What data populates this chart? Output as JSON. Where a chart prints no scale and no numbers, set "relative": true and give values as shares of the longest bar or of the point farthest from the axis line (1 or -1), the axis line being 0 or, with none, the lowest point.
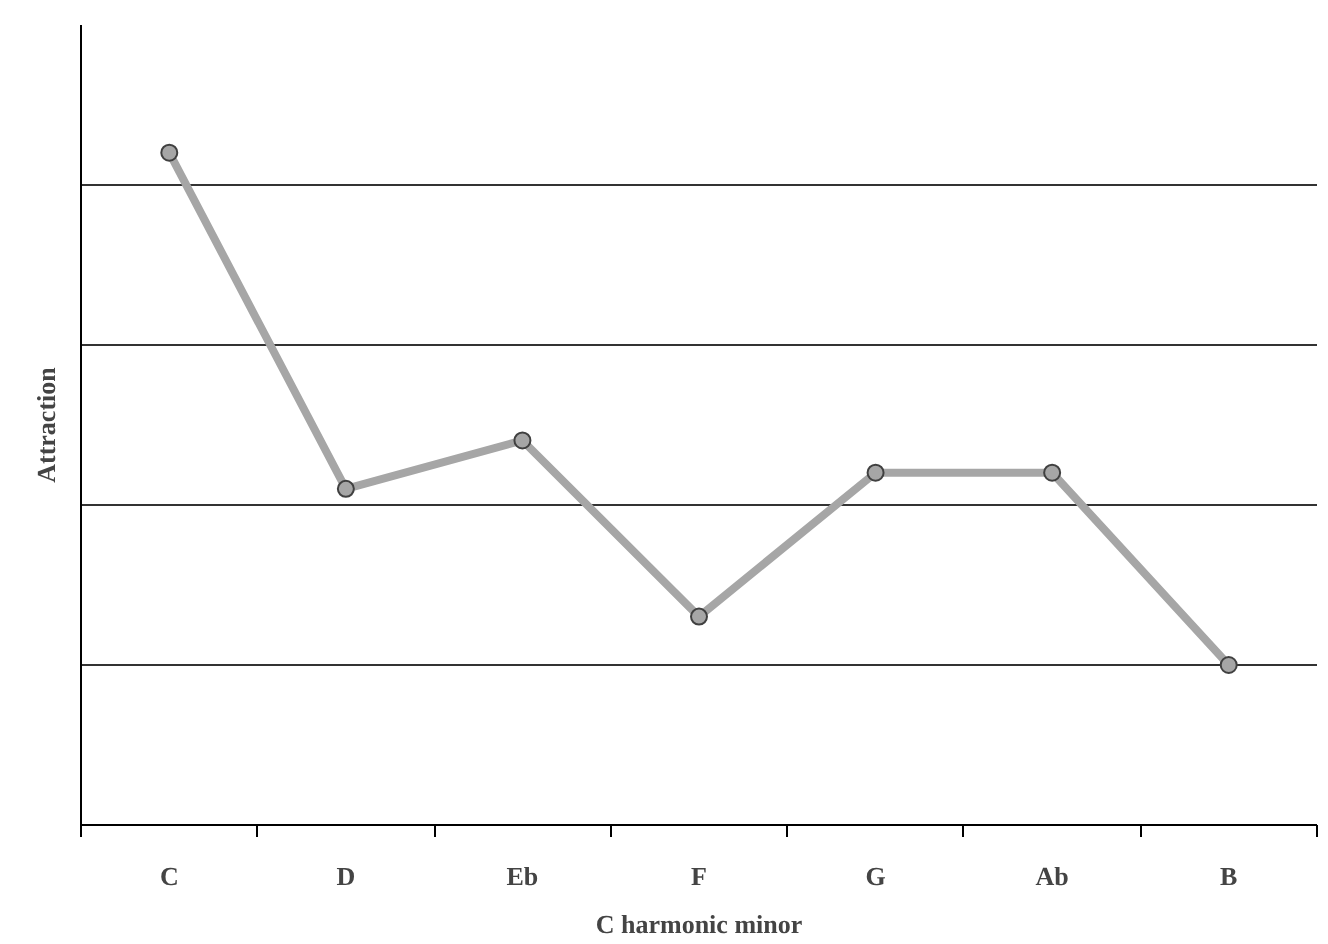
{
  "chart_data": {
    "type": "line",
    "xlabel": "C harmonic minor",
    "ylabel": "Attraction",
    "categories": [
      "C",
      "D",
      "Eb",
      "F",
      "G",
      "Ab",
      "B"
    ],
    "series": [
      {
        "color": "#a6a6a6",
        "values": [
          1,
          0.5,
          0.572,
          0.31,
          0.524,
          0.524,
          0.238
        ]
      }
    ],
    "relative": true,
    "grid": "y",
    "marker": "circle",
    "line_style": "solid"
  }
}
